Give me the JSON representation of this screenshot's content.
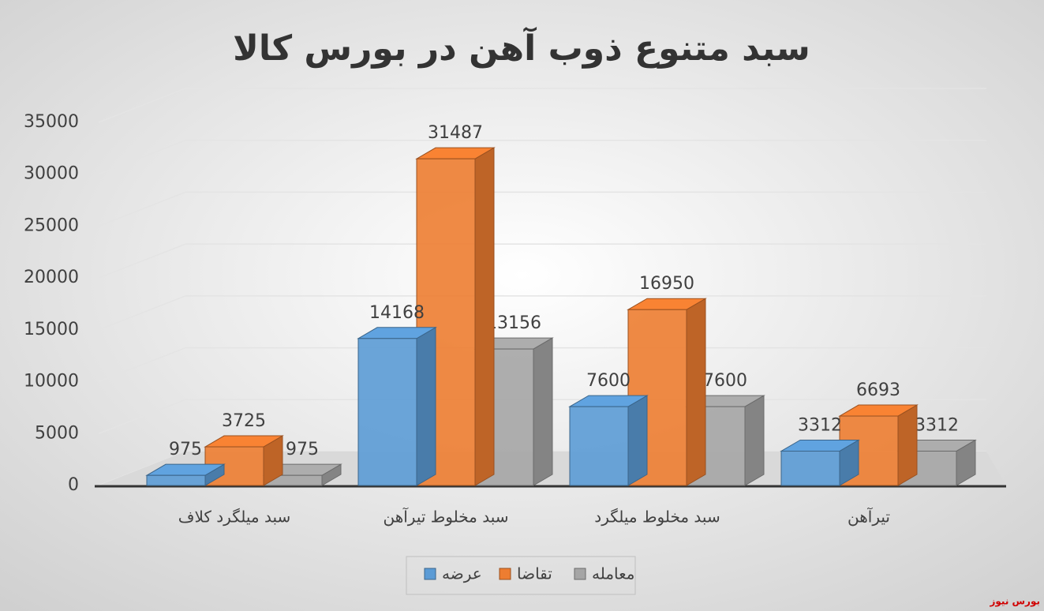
{
  "chart_data": {
    "type": "bar3d",
    "title": "سبد متنوع ذوب آهن در بورس کالا",
    "categories": [
      "سبد میلگرد کلاف",
      "سبد مخلوط تیرآهن",
      "سبد مخلوط میلگرد",
      "تیرآهن"
    ],
    "series": [
      {
        "name": "عرضه",
        "color": "#5b9bd5",
        "values": [
          975,
          14168,
          7600,
          3312
        ]
      },
      {
        "name": "تقاضا",
        "color": "#ed7d31",
        "values": [
          3725,
          31487,
          16950,
          6693
        ]
      },
      {
        "name": "معامله",
        "color": "#a5a5a5",
        "values": [
          975,
          13156,
          7600,
          3312
        ]
      }
    ],
    "ylim": [
      0,
      35000
    ],
    "yticks": [
      0,
      5000,
      10000,
      15000,
      20000,
      25000,
      30000,
      35000
    ],
    "grid": true,
    "legend": "bottom",
    "source": "بورس نیوز"
  }
}
